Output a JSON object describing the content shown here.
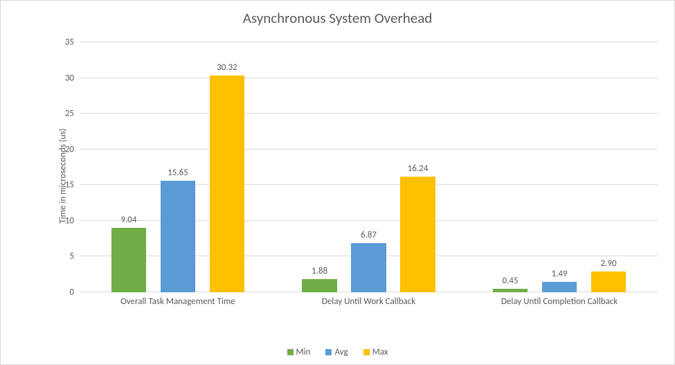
{
  "chart": {
    "title": "Asynchronous System Overhead",
    "title_fontsize": 21,
    "title_color": "#595959",
    "y_axis_label": "Time in microseconds (us)",
    "axis_label_fontsize": 13,
    "tick_fontsize": 13,
    "data_label_fontsize": 13,
    "legend_fontsize": 13,
    "background_color": "#ffffff",
    "border_color": "#d9d9d9",
    "grid_color": "#d9d9d9",
    "baseline_color": "#bfbfbf",
    "text_color": "#595959",
    "categories": [
      "Overall Task Management Time",
      "Delay Until Work Callback",
      "Delay Until Completion Callback"
    ],
    "series": [
      {
        "name": "Min",
        "color": "#70ad47",
        "values": [
          9.04,
          1.88,
          0.45
        ]
      },
      {
        "name": "Avg",
        "color": "#5b9bd5",
        "values": [
          15.65,
          6.87,
          1.49
        ]
      },
      {
        "name": "Max",
        "color": "#ffc000",
        "values": [
          30.32,
          16.24,
          2.9
        ]
      }
    ],
    "ymin": 0,
    "ymax": 35,
    "ytick_step": 5,
    "bar_width_pct": 6.0,
    "bar_gap_pct": 2.5,
    "group_positions_pct": [
      17,
      50,
      83
    ],
    "decimals": 2
  }
}
